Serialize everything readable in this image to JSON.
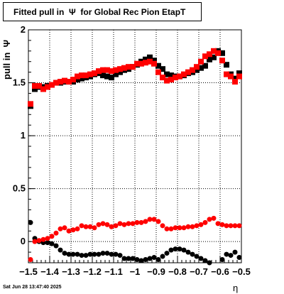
{
  "chart_data": {
    "type": "scatter",
    "title": "Fitted pull in  Ψ  for Global Rec Pion EtapT",
    "xlabel": "η",
    "ylabel": "pull in  Ψ",
    "xlim": [
      -1.5,
      -0.5
    ],
    "ylim": [
      -0.2,
      2.0
    ],
    "grid": true,
    "x_ticks": [
      "−1.5",
      "−1.4",
      "−1.3",
      "−1.2",
      "−1.1",
      "−1",
      "−0.9",
      "−0.8",
      "−0.7",
      "−0.6",
      "−0.5"
    ],
    "y_ticks": [
      "0",
      "0.5",
      "1",
      "1.5",
      "2"
    ],
    "x_tick_values": [
      -1.5,
      -1.4,
      -1.3,
      -1.2,
      -1.1,
      -1.0,
      -0.9,
      -0.8,
      -0.7,
      -0.6,
      -0.5
    ],
    "y_tick_values": [
      0,
      0.5,
      1,
      1.5,
      2
    ],
    "series": [
      {
        "marker": "square",
        "color": "#000000",
        "x": [
          -1.49,
          -1.47,
          -1.45,
          -1.43,
          -1.41,
          -1.39,
          -1.37,
          -1.35,
          -1.33,
          -1.31,
          -1.29,
          -1.27,
          -1.25,
          -1.23,
          -1.21,
          -1.19,
          -1.17,
          -1.15,
          -1.13,
          -1.11,
          -1.09,
          -1.07,
          -1.05,
          -1.03,
          -1.01,
          -0.99,
          -0.97,
          -0.95,
          -0.93,
          -0.91,
          -0.89,
          -0.87,
          -0.85,
          -0.83,
          -0.81,
          -0.79,
          -0.77,
          -0.75,
          -0.73,
          -0.71,
          -0.69,
          -0.67,
          -0.65,
          -0.63,
          -0.61,
          -0.59,
          -0.57,
          -0.55,
          -0.53,
          -0.51
        ],
        "y": [
          1.28,
          1.44,
          1.46,
          1.46,
          1.47,
          1.48,
          1.5,
          1.5,
          1.51,
          1.51,
          1.51,
          1.53,
          1.54,
          1.55,
          1.56,
          1.58,
          1.59,
          1.57,
          1.56,
          1.55,
          1.58,
          1.6,
          1.62,
          1.63,
          1.65,
          1.67,
          1.7,
          1.72,
          1.74,
          1.71,
          1.66,
          1.63,
          1.58,
          1.57,
          1.56,
          1.56,
          1.57,
          1.59,
          1.6,
          1.62,
          1.64,
          1.66,
          1.72,
          1.74,
          1.8,
          1.78,
          1.67,
          1.58,
          1.54,
          1.59
        ]
      },
      {
        "marker": "square",
        "color": "#ff0000",
        "x": [
          -1.49,
          -1.47,
          -1.45,
          -1.43,
          -1.41,
          -1.39,
          -1.37,
          -1.35,
          -1.33,
          -1.31,
          -1.29,
          -1.27,
          -1.25,
          -1.23,
          -1.21,
          -1.19,
          -1.17,
          -1.15,
          -1.13,
          -1.11,
          -1.09,
          -1.07,
          -1.05,
          -1.03,
          -1.01,
          -0.99,
          -0.97,
          -0.95,
          -0.93,
          -0.91,
          -0.89,
          -0.87,
          -0.85,
          -0.83,
          -0.81,
          -0.79,
          -0.77,
          -0.75,
          -0.73,
          -0.71,
          -0.69,
          -0.67,
          -0.65,
          -0.63,
          -0.61,
          -0.59,
          -0.57,
          -0.55,
          -0.53,
          -0.51
        ],
        "y": [
          1.3,
          1.47,
          1.47,
          1.44,
          1.46,
          1.48,
          1.5,
          1.51,
          1.52,
          1.51,
          1.53,
          1.56,
          1.57,
          1.57,
          1.58,
          1.59,
          1.61,
          1.62,
          1.62,
          1.61,
          1.62,
          1.63,
          1.64,
          1.65,
          1.65,
          1.68,
          1.68,
          1.69,
          1.7,
          1.68,
          1.6,
          1.55,
          1.52,
          1.53,
          1.55,
          1.56,
          1.58,
          1.6,
          1.62,
          1.65,
          1.7,
          1.75,
          1.77,
          1.8,
          1.78,
          1.71,
          1.58,
          1.56,
          1.51,
          1.56
        ]
      },
      {
        "marker": "circle",
        "color": "#000000",
        "x": [
          -1.49,
          -1.47,
          -1.45,
          -1.43,
          -1.41,
          -1.39,
          -1.37,
          -1.35,
          -1.33,
          -1.31,
          -1.29,
          -1.27,
          -1.25,
          -1.23,
          -1.21,
          -1.19,
          -1.17,
          -1.15,
          -1.13,
          -1.11,
          -1.09,
          -1.07,
          -1.05,
          -1.03,
          -1.01,
          -0.99,
          -0.97,
          -0.95,
          -0.93,
          -0.91,
          -0.89,
          -0.87,
          -0.85,
          -0.83,
          -0.81,
          -0.79,
          -0.77,
          -0.75,
          -0.73,
          -0.71,
          -0.69,
          -0.67,
          -0.65,
          -0.63,
          -0.61,
          -0.59,
          -0.57,
          -0.55,
          -0.53,
          -0.51
        ],
        "y": [
          0.18,
          0.03,
          0.0,
          -0.01,
          -0.01,
          -0.02,
          -0.04,
          -0.08,
          -0.11,
          -0.12,
          -0.12,
          -0.12,
          -0.13,
          -0.13,
          -0.12,
          -0.12,
          -0.12,
          -0.11,
          -0.11,
          -0.12,
          -0.12,
          -0.13,
          -0.16,
          -0.16,
          -0.16,
          -0.17,
          -0.18,
          -0.17,
          -0.16,
          -0.15,
          -0.17,
          -0.14,
          -0.11,
          -0.08,
          -0.07,
          -0.07,
          -0.08,
          -0.1,
          -0.12,
          -0.14,
          -0.16,
          -0.18,
          -0.2,
          -0.22,
          -0.21,
          -0.17,
          -0.12,
          -0.13,
          -0.1,
          -0.15
        ]
      },
      {
        "marker": "circle",
        "color": "#ff0000",
        "x": [
          -1.49,
          -1.47,
          -1.45,
          -1.43,
          -1.41,
          -1.39,
          -1.37,
          -1.35,
          -1.33,
          -1.31,
          -1.29,
          -1.27,
          -1.25,
          -1.23,
          -1.21,
          -1.19,
          -1.17,
          -1.15,
          -1.13,
          -1.11,
          -1.09,
          -1.07,
          -1.05,
          -1.03,
          -1.01,
          -0.99,
          -0.97,
          -0.95,
          -0.93,
          -0.91,
          -0.89,
          -0.87,
          -0.85,
          -0.83,
          -0.81,
          -0.79,
          -0.77,
          -0.75,
          -0.73,
          -0.71,
          -0.69,
          -0.67,
          -0.65,
          -0.63,
          -0.61,
          -0.59,
          -0.57,
          -0.55,
          -0.53,
          -0.51
        ],
        "y": [
          -0.17,
          0.0,
          0.01,
          0.02,
          0.03,
          0.05,
          0.08,
          0.12,
          0.13,
          0.1,
          0.11,
          0.12,
          0.15,
          0.14,
          0.14,
          0.13,
          0.16,
          0.17,
          0.16,
          0.14,
          0.15,
          0.17,
          0.16,
          0.17,
          0.17,
          0.18,
          0.18,
          0.19,
          0.21,
          0.21,
          0.19,
          0.15,
          0.12,
          0.12,
          0.13,
          0.13,
          0.13,
          0.14,
          0.14,
          0.15,
          0.16,
          0.18,
          0.21,
          0.22,
          0.17,
          0.16,
          0.15,
          0.15,
          0.15,
          0.15
        ]
      }
    ]
  },
  "footer": {
    "timestamp": "Sat Jun 28 13:47:40 2025"
  }
}
